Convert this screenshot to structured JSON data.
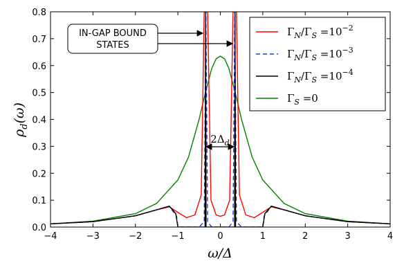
{
  "chart_data": {
    "type": "line",
    "xlim": [
      -4,
      4
    ],
    "ylim": [
      0.0,
      0.8
    ],
    "xticks": [
      "−4",
      "−3",
      "−2",
      "−1",
      "0",
      "1",
      "2",
      "3",
      "4"
    ],
    "yticks": [
      "0.0",
      "0.1",
      "0.2",
      "0.3",
      "0.4",
      "0.5",
      "0.6",
      "0.7",
      "0.8"
    ],
    "xlabel": {
      "main": "ω/Δ"
    },
    "ylabel": {
      "main": "ρ",
      "sub": "d",
      "tail": "(ω)"
    },
    "legend_position": "top-right",
    "grid": false,
    "annotation_box": {
      "line1": "IN-GAP BOUND",
      "line2": "STATES"
    },
    "gap_label": {
      "main": "2Δ",
      "sub": "d"
    },
    "series": [
      {
        "label_main": "Γ",
        "label_sub": "N",
        "label_mid": "/Γ",
        "label_sub2": "S",
        "label_eq": " =10",
        "label_exp": "−2",
        "color": "#ff0000",
        "dash": "none",
        "points": [
          [
            -4,
            0.012
          ],
          [
            -3,
            0.02
          ],
          [
            -2,
            0.042
          ],
          [
            -1.5,
            0.064
          ],
          [
            -1.2,
            0.075
          ],
          [
            -1.0,
            0.055
          ],
          [
            -0.8,
            0.035
          ],
          [
            -0.6,
            0.045
          ],
          [
            -0.45,
            0.12
          ],
          [
            -0.38,
            0.8
          ],
          [
            -0.3,
            0.8
          ],
          [
            -0.22,
            0.1
          ],
          [
            -0.1,
            0.045
          ],
          [
            0,
            0.04
          ],
          [
            0.1,
            0.045
          ],
          [
            0.22,
            0.1
          ],
          [
            0.3,
            0.8
          ],
          [
            0.38,
            0.8
          ],
          [
            0.45,
            0.12
          ],
          [
            0.6,
            0.045
          ],
          [
            0.8,
            0.035
          ],
          [
            1.0,
            0.055
          ],
          [
            1.2,
            0.075
          ],
          [
            1.5,
            0.064
          ],
          [
            2,
            0.042
          ],
          [
            3,
            0.02
          ],
          [
            4,
            0.012
          ]
        ]
      },
      {
        "label_main": "Γ",
        "label_sub": "N",
        "label_mid": "/Γ",
        "label_sub2": "S",
        "label_eq": " =10",
        "label_exp": "−3",
        "color": "#1f3fd8",
        "dash": "6,4",
        "points": [
          [
            -4,
            0.012
          ],
          [
            -3,
            0.02
          ],
          [
            -2,
            0.042
          ],
          [
            -1.5,
            0.064
          ],
          [
            -1.2,
            0.077
          ],
          [
            -1.03,
            0.04
          ],
          [
            -1.0,
            0.0
          ],
          [
            -0.5,
            0.0
          ],
          [
            -0.38,
            0.02
          ],
          [
            -0.34,
            0.8
          ],
          [
            -0.3,
            0.02
          ],
          [
            -0.2,
            0.0
          ],
          [
            0,
            0.0
          ],
          [
            0.2,
            0.0
          ],
          [
            0.3,
            0.02
          ],
          [
            0.34,
            0.8
          ],
          [
            0.38,
            0.02
          ],
          [
            0.5,
            0.0
          ],
          [
            1.0,
            0.0
          ],
          [
            1.03,
            0.04
          ],
          [
            1.2,
            0.077
          ],
          [
            1.5,
            0.064
          ],
          [
            2,
            0.042
          ],
          [
            3,
            0.02
          ],
          [
            4,
            0.012
          ]
        ]
      },
      {
        "label_main": "Γ",
        "label_sub": "N",
        "label_mid": "/Γ",
        "label_sub2": "S",
        "label_eq": " =10",
        "label_exp": "−4",
        "color": "#000000",
        "dash": "none",
        "points": [
          [
            -4,
            0.012
          ],
          [
            -3,
            0.02
          ],
          [
            -2,
            0.042
          ],
          [
            -1.5,
            0.064
          ],
          [
            -1.2,
            0.078
          ],
          [
            -1.05,
            0.05
          ],
          [
            -1.0,
            0.0
          ],
          [
            -0.5,
            0.0
          ],
          [
            -0.36,
            0.0
          ],
          [
            -0.345,
            0.8
          ],
          [
            -0.335,
            0.0
          ],
          [
            0,
            0.0
          ],
          [
            0.335,
            0.0
          ],
          [
            0.345,
            0.8
          ],
          [
            0.36,
            0.0
          ],
          [
            0.5,
            0.0
          ],
          [
            1.0,
            0.0
          ],
          [
            1.05,
            0.05
          ],
          [
            1.2,
            0.078
          ],
          [
            1.5,
            0.064
          ],
          [
            2,
            0.042
          ],
          [
            3,
            0.02
          ],
          [
            4,
            0.012
          ]
        ]
      },
      {
        "label_main": "Γ",
        "label_sub": "S",
        "label_mid": "",
        "label_sub2": "",
        "label_eq": " =0",
        "label_exp": "",
        "color": "#008000",
        "dash": "none",
        "points": [
          [
            -4,
            0.012
          ],
          [
            -3,
            0.022
          ],
          [
            -2,
            0.05
          ],
          [
            -1.5,
            0.088
          ],
          [
            -1,
            0.175
          ],
          [
            -0.75,
            0.26
          ],
          [
            -0.5,
            0.4
          ],
          [
            -0.35,
            0.5
          ],
          [
            -0.2,
            0.59
          ],
          [
            -0.1,
            0.625
          ],
          [
            0,
            0.635
          ],
          [
            0.1,
            0.625
          ],
          [
            0.2,
            0.59
          ],
          [
            0.35,
            0.5
          ],
          [
            0.5,
            0.4
          ],
          [
            0.75,
            0.26
          ],
          [
            1,
            0.175
          ],
          [
            1.5,
            0.088
          ],
          [
            2,
            0.05
          ],
          [
            3,
            0.022
          ],
          [
            4,
            0.012
          ]
        ]
      }
    ]
  }
}
